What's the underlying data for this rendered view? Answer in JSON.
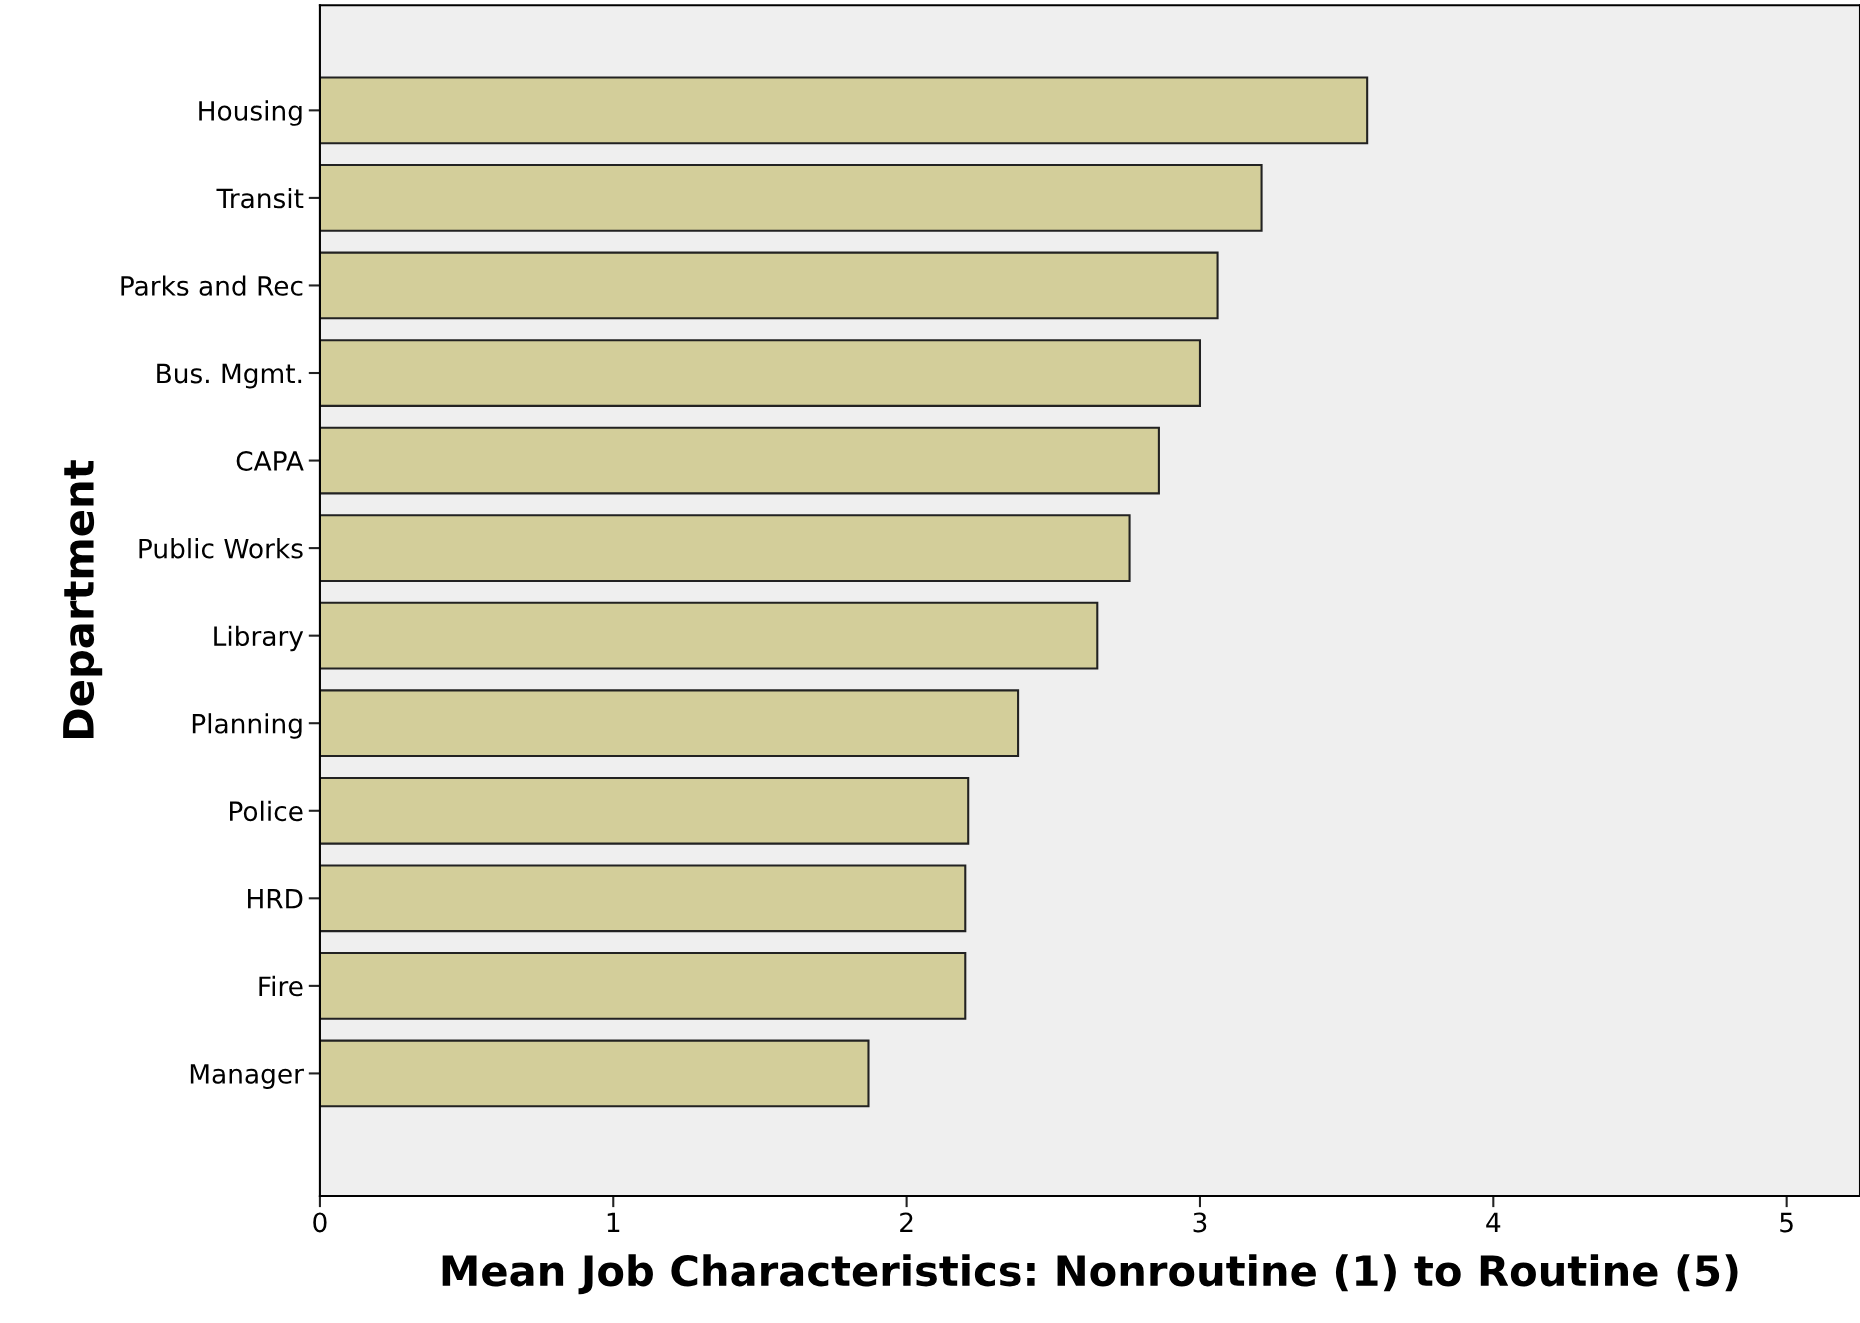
{
  "chart_data": {
    "type": "bar",
    "orientation": "horizontal",
    "xlabel": "Mean Job Characteristics: Nonroutine (1) to Routine (5)",
    "ylabel": "Department",
    "categories": [
      "Housing",
      "Transit",
      "Parks and Rec",
      "Bus. Mgmt.",
      "CAPA",
      "Public Works",
      "Library",
      "Planning",
      "Police",
      "HRD",
      "Fire",
      "Manager"
    ],
    "values": [
      3.57,
      3.21,
      3.06,
      3.0,
      2.86,
      2.76,
      2.65,
      2.38,
      2.21,
      2.2,
      2.2,
      1.87
    ],
    "color": "#d3ce9a",
    "xlim": [
      0,
      5.25
    ],
    "xticks": [
      0,
      1,
      2,
      3,
      4,
      5
    ],
    "grid": false
  }
}
